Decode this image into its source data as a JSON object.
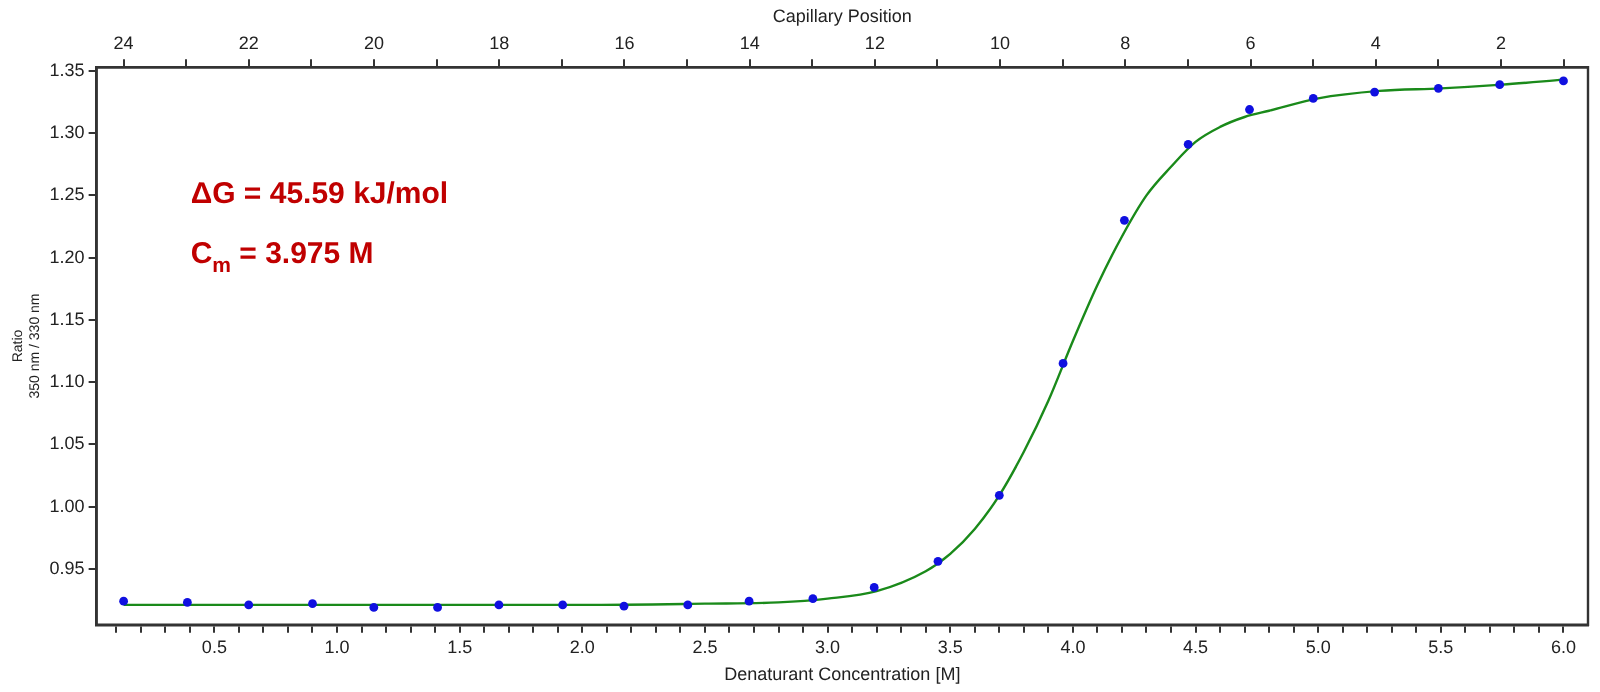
{
  "chart_data": {
    "type": "scatter",
    "xlabel": "Denaturant Concentration [M]",
    "ylabel": "Ratio\n350 nm / 330 nm",
    "x2label": "Capillary Position",
    "annotations": [
      "ΔG = 45.59 kJ/mol",
      "C$_{m}$ = 3.975 M"
    ],
    "xlim": [
      0.02,
      6.1
    ],
    "ylim": [
      0.905,
      1.353
    ],
    "x2lim": [
      24.43,
      0.61
    ],
    "xticks": [
      {
        "value": 0.1,
        "label": null
      },
      {
        "value": 0.2,
        "label": null
      },
      {
        "value": 0.3,
        "label": null
      },
      {
        "value": 0.4,
        "label": null
      },
      0.5,
      {
        "value": 0.6,
        "label": null
      },
      {
        "value": 0.7,
        "label": null
      },
      {
        "value": 0.8,
        "label": null
      },
      {
        "value": 0.9,
        "label": null
      },
      {
        "value": 1,
        "label": "1.0"
      },
      {
        "value": 1.1,
        "label": null
      },
      {
        "value": 1.2,
        "label": null
      },
      {
        "value": 1.3,
        "label": null
      },
      {
        "value": 1.4,
        "label": null
      },
      1.5,
      {
        "value": 1.6,
        "label": null
      },
      {
        "value": 1.7,
        "label": null
      },
      {
        "value": 1.8,
        "label": null
      },
      {
        "value": 1.9,
        "label": null
      },
      {
        "value": 2,
        "label": "2.0"
      },
      {
        "value": 2.1,
        "label": null
      },
      {
        "value": 2.2,
        "label": null
      },
      {
        "value": 2.3,
        "label": null
      },
      {
        "value": 2.4,
        "label": null
      },
      2.5,
      {
        "value": 2.6,
        "label": null
      },
      {
        "value": 2.7,
        "label": null
      },
      {
        "value": 2.8,
        "label": null
      },
      {
        "value": 2.9,
        "label": null
      },
      {
        "value": 3,
        "label": "3.0"
      },
      {
        "value": 3.1,
        "label": null
      },
      {
        "value": 3.2,
        "label": null
      },
      {
        "value": 3.3,
        "label": null
      },
      {
        "value": 3.4,
        "label": null
      },
      3.5,
      {
        "value": 3.6,
        "label": null
      },
      {
        "value": 3.7,
        "label": null
      },
      {
        "value": 3.8,
        "label": null
      },
      {
        "value": 3.9,
        "label": null
      },
      {
        "value": 4,
        "label": "4.0"
      },
      {
        "value": 4.1,
        "label": null
      },
      {
        "value": 4.2,
        "label": null
      },
      {
        "value": 4.3,
        "label": null
      },
      {
        "value": 4.4,
        "label": null
      },
      4.5,
      {
        "value": 4.6,
        "label": null
      },
      {
        "value": 4.7,
        "label": null
      },
      {
        "value": 4.8,
        "label": null
      },
      {
        "value": 4.9,
        "label": null
      },
      {
        "value": 5,
        "label": "5.0"
      },
      {
        "value": 5.1,
        "label": null
      },
      {
        "value": 5.2,
        "label": null
      },
      {
        "value": 5.3,
        "label": null
      },
      {
        "value": 5.4,
        "label": null
      },
      5.5,
      {
        "value": 5.6,
        "label": null
      },
      {
        "value": 5.7,
        "label": null
      },
      {
        "value": 5.8,
        "label": null
      },
      {
        "value": 5.9,
        "label": null
      },
      {
        "value": 6,
        "label": "6.0"
      }
    ],
    "yticks": [
      0.95,
      {
        "value": 1,
        "label": "1.00"
      },
      1.05,
      {
        "value": 1.1,
        "label": "1.10"
      },
      1.15,
      {
        "value": 1.2,
        "label": "1.20"
      },
      1.25,
      {
        "value": 1.3,
        "label": "1.30"
      },
      1.35
    ],
    "x2ticks": [
      24,
      {
        "value": 23,
        "label": null
      },
      22,
      {
        "value": 21,
        "label": null
      },
      20,
      {
        "value": 19,
        "label": null
      },
      18,
      {
        "value": 17,
        "label": null
      },
      16,
      {
        "value": 15,
        "label": null
      },
      14,
      {
        "value": 13,
        "label": null
      },
      12,
      {
        "value": 11,
        "label": null
      },
      10,
      {
        "value": 9,
        "label": null
      },
      8,
      {
        "value": 7,
        "label": null
      },
      6,
      {
        "value": 5,
        "label": null
      },
      4,
      {
        "value": 3,
        "label": null
      },
      2,
      {
        "value": 1,
        "label": null
      }
    ],
    "grid": false,
    "legend": false,
    "marker": "circle",
    "series": [
      {
        "type": "line",
        "color": "#1a8a1a",
        "marker": "none",
        "line_style": "solid",
        "x": [
          0.13,
          0.5,
          1,
          1.5,
          2,
          2.5,
          2.8,
          3,
          3.2,
          3.4,
          3.5,
          3.6,
          3.7,
          3.8,
          3.9,
          4,
          4.1,
          4.2,
          4.3,
          4.4,
          4.5,
          4.6,
          4.7,
          4.8,
          5,
          5.25,
          5.5,
          5.75,
          6
        ],
        "values": [
          0.921,
          0.921,
          0.921,
          0.921,
          0.921,
          0.922,
          0.923,
          0.926,
          0.932,
          0.948,
          0.962,
          0.982,
          1.009,
          1.044,
          1.085,
          1.133,
          1.178,
          1.217,
          1.25,
          1.273,
          1.293,
          1.305,
          1.313,
          1.318,
          1.328,
          1.334,
          1.336,
          1.339,
          1.343
        ]
      },
      {
        "type": "scatter",
        "color": "#1010e0",
        "x": [
          0.13,
          0.39,
          0.64,
          0.9,
          1.15,
          1.41,
          1.66,
          1.92,
          2.17,
          2.43,
          2.68,
          2.94,
          3.19,
          3.45,
          3.7,
          3.96,
          4.21,
          4.47,
          4.72,
          4.98,
          5.23,
          5.49,
          5.74,
          6.0
        ],
        "values": [
          0.924,
          0.923,
          0.921,
          0.922,
          0.919,
          0.919,
          0.921,
          0.921,
          0.92,
          0.921,
          0.924,
          0.926,
          0.935,
          0.956,
          1.009,
          1.115,
          1.23,
          1.291,
          1.319,
          1.328,
          1.333,
          1.336,
          1.339,
          1.342
        ]
      }
    ]
  }
}
